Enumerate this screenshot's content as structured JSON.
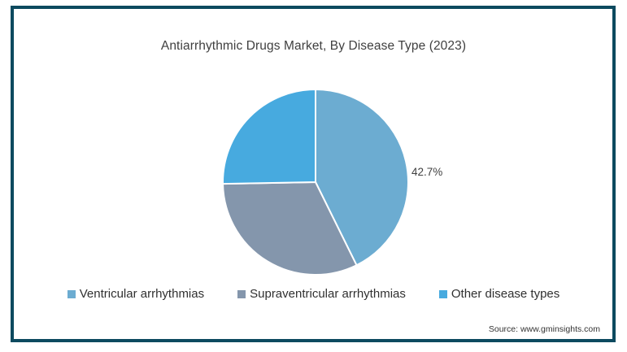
{
  "chart_data": {
    "type": "pie",
    "title": "Antiarrhythmic Drugs Market, By Disease Type (2023)",
    "slices": [
      {
        "label": "Ventricular arrhythmias",
        "value": 42.7,
        "color": "#6CACD1"
      },
      {
        "label": "Supraventricular arrhythmias",
        "value": 32.0,
        "color": "#8496AC"
      },
      {
        "label": "Other disease types",
        "value": 25.3,
        "color": "#47AADF"
      }
    ],
    "start_angle_deg": 0,
    "direction": "clockwise",
    "data_label": {
      "text": "42.7%",
      "slice": "Ventricular arrhythmias"
    },
    "legend_position": "bottom",
    "divider_color": "#FFFFFF"
  },
  "source_text": "Source: www.gminsights.com",
  "colors": {
    "frame_border": "#0D4A5F",
    "title_text": "#3F3F3F",
    "label_text": "#404040",
    "background": "#FFFFFF"
  }
}
